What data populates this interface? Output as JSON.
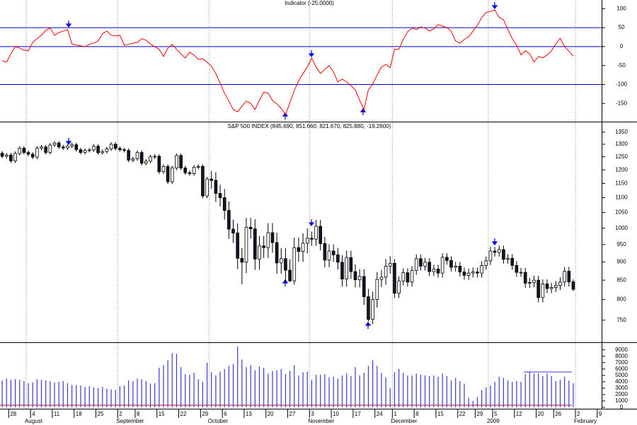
{
  "chart_data": [
    {
      "type": "line",
      "title": "Indicator (-25.0000)",
      "color": "#ff0000",
      "values": [
        -37,
        -41,
        -19,
        0,
        -4,
        -9,
        -11,
        11,
        21,
        30,
        43,
        49,
        30,
        37,
        41,
        45,
        7,
        4,
        2,
        0,
        6,
        9,
        15,
        34,
        41,
        30,
        28,
        30,
        4,
        6,
        9,
        11,
        21,
        17,
        7,
        0,
        -7,
        -26,
        -4,
        6,
        -7,
        -19,
        -30,
        -15,
        -22,
        -34,
        -32,
        -41,
        -52,
        -71,
        -97,
        -123,
        -144,
        -166,
        -172,
        -157,
        -144,
        -150,
        -166,
        -142,
        -120,
        -123,
        -142,
        -151,
        -163,
        -179,
        -148,
        -116,
        -90,
        -71,
        -54,
        -30,
        -54,
        -71,
        -60,
        -50,
        -67,
        -93,
        -86,
        -93,
        -103,
        -114,
        -142,
        -166,
        -114,
        -99,
        -75,
        -54,
        -47,
        -56,
        -7,
        -7,
        19,
        39,
        49,
        45,
        52,
        49,
        41,
        47,
        58,
        54,
        50,
        41,
        15,
        9,
        19,
        26,
        41,
        56,
        77,
        90,
        93,
        97,
        77,
        71,
        45,
        21,
        4,
        -22,
        -11,
        -19,
        -41,
        -26,
        -30,
        -22,
        -11,
        7,
        22,
        0,
        -12,
        -25,
        null,
        null,
        null,
        null,
        null,
        null
      ],
      "levels": [
        50,
        0,
        -100
      ],
      "level_color": "#0000cc",
      "ylim": [
        -198,
        123
      ],
      "yticks": [
        100,
        50,
        0,
        -50,
        -100,
        -150
      ]
    },
    {
      "type": "candlestick",
      "title": "S&P 500 INDEX (845.690, 851.660, 821.670, 825.880, -19.2600)",
      "up_color": "#ffffff",
      "down_color": "#101828",
      "log_scale": true,
      "open": [
        1264,
        1252,
        1257,
        1234,
        1263,
        1284,
        1267,
        1260,
        1249,
        1284,
        1289,
        1267,
        1297,
        1305,
        1289,
        1285,
        1292,
        1298,
        1278,
        1267,
        1275,
        1277,
        1292,
        1266,
        1271,
        1281,
        1300,
        1283,
        1278,
        1275,
        1237,
        1242,
        1267,
        1225,
        1233,
        1250,
        1252,
        1193,
        1213,
        1156,
        1207,
        1255,
        1207,
        1189,
        1186,
        1210,
        1213,
        1106,
        1166,
        1161,
        1115,
        1100,
        1057,
        997,
        985,
        910,
        899,
        1003,
        998,
        908,
        946,
        941,
        986,
        956,
        897,
        909,
        877,
        848,
        941,
        930,
        954,
        969,
        966,
        1006,
        953,
        905,
        931,
        920,
        899,
        853,
        912,
        873,
        851,
        860,
        807,
        752,
        800,
        852,
        858,
        888,
        896,
        816,
        848,
        870,
        845,
        876,
        909,
        888,
        899,
        873,
        880,
        869,
        913,
        904,
        885,
        888,
        872,
        863,
        869,
        872,
        869,
        890,
        903,
        931,
        927,
        935,
        907,
        910,
        890,
        871,
        871,
        842,
        844,
        850,
        805,
        840,
        828,
        831,
        836,
        845,
        874,
        845.69,
        null,
        null,
        null,
        null,
        null,
        null
      ],
      "high": [
        1272,
        1265,
        1265,
        1271,
        1292,
        1292,
        1275,
        1268,
        1292,
        1297,
        1297,
        1305,
        1313,
        1313,
        1297,
        1300,
        1306,
        1306,
        1286,
        1283,
        1285,
        1300,
        1300,
        1279,
        1289,
        1308,
        1308,
        1291,
        1286,
        1283,
        1250,
        1275,
        1275,
        1241,
        1258,
        1260,
        1260,
        1221,
        1221,
        1215,
        1263,
        1263,
        1215,
        1197,
        1218,
        1221,
        1221,
        1174,
        1196,
        1191,
        1145,
        1130,
        1087,
        1027,
        1015,
        940,
        1033,
        1033,
        1028,
        976,
        976,
        1016,
        1016,
        986,
        939,
        939,
        907,
        971,
        971,
        984,
        999,
        989,
        1026,
        1026,
        973,
        951,
        951,
        940,
        919,
        932,
        932,
        893,
        880,
        880,
        827,
        820,
        872,
        878,
        908,
        916,
        908,
        860,
        882,
        882,
        888,
        921,
        921,
        911,
        911,
        892,
        892,
        925,
        925,
        916,
        900,
        900,
        884,
        881,
        884,
        884,
        902,
        915,
        943,
        943,
        947,
        947,
        922,
        922,
        902,
        883,
        883,
        856,
        862,
        862,
        852,
        852,
        843,
        848,
        857,
        886,
        886,
        851.66,
        null,
        null,
        null,
        null,
        null,
        null
      ],
      "low": [
        1244,
        1244,
        1226,
        1226,
        1255,
        1259,
        1252,
        1241,
        1241,
        1276,
        1259,
        1259,
        1289,
        1281,
        1277,
        1277,
        1284,
        1270,
        1259,
        1259,
        1267,
        1269,
        1258,
        1258,
        1263,
        1273,
        1275,
        1270,
        1267,
        1229,
        1229,
        1234,
        1217,
        1217,
        1225,
        1242,
        1185,
        1185,
        1148,
        1148,
        1199,
        1199,
        1181,
        1178,
        1178,
        1202,
        1098,
        1098,
        1131,
        1085,
        1070,
        1027,
        967,
        955,
        880,
        839,
        869,
        968,
        878,
        878,
        911,
        911,
        926,
        867,
        867,
        847,
        845,
        838,
        900,
        900,
        924,
        946,
        946,
        933,
        885,
        885,
        900,
        879,
        833,
        833,
        853,
        831,
        831,
        787,
        747,
        741,
        780,
        832,
        838,
        868,
        804,
        804,
        836,
        833,
        833,
        864,
        876,
        876,
        861,
        861,
        857,
        857,
        892,
        873,
        873,
        860,
        851,
        851,
        857,
        857,
        857,
        878,
        891,
        915,
        915,
        895,
        895,
        878,
        859,
        859,
        830,
        830,
        832,
        793,
        793,
        816,
        816,
        819,
        824,
        833,
        833,
        821.67,
        null,
        null,
        null,
        null,
        null,
        null
      ],
      "close": [
        1252,
        1257,
        1234,
        1263,
        1284,
        1267,
        1260,
        1249,
        1284,
        1289,
        1267,
        1297,
        1305,
        1289,
        1285,
        1292,
        1298,
        1278,
        1267,
        1275,
        1277,
        1292,
        1266,
        1271,
        1281,
        1300,
        1283,
        1278,
        1275,
        1237,
        1242,
        1267,
        1225,
        1233,
        1250,
        1252,
        1193,
        1213,
        1156,
        1207,
        1255,
        1207,
        1189,
        1186,
        1210,
        1213,
        1106,
        1166,
        1161,
        1115,
        1100,
        1057,
        997,
        985,
        910,
        899,
        1003,
        998,
        908,
        946,
        941,
        986,
        956,
        897,
        909,
        877,
        848,
        941,
        930,
        954,
        969,
        966,
        1006,
        953,
        905,
        931,
        920,
        899,
        853,
        912,
        873,
        851,
        860,
        807,
        752,
        800,
        852,
        858,
        888,
        896,
        816,
        848,
        870,
        845,
        876,
        909,
        888,
        899,
        873,
        880,
        869,
        913,
        904,
        885,
        888,
        872,
        863,
        869,
        872,
        869,
        890,
        903,
        931,
        927,
        935,
        907,
        910,
        890,
        871,
        871,
        842,
        844,
        850,
        805,
        840,
        828,
        831,
        836,
        845,
        874,
        845.14,
        825.88,
        null,
        null,
        null,
        null,
        null,
        null
      ],
      "ylim": [
        700,
        1389
      ],
      "yticks": [
        1350,
        1300,
        1250,
        1200,
        1150,
        1100,
        1050,
        1000,
        950,
        900,
        850,
        800,
        750
      ]
    },
    {
      "type": "bar",
      "color": "#3a3ad0",
      "values": [
        4200,
        4500,
        4300,
        4400,
        4300,
        4100,
        3800,
        3900,
        4400,
        4300,
        4200,
        4100,
        3900,
        4000,
        4100,
        3800,
        3500,
        3500,
        3400,
        3200,
        3300,
        3100,
        3000,
        3200,
        2900,
        2800,
        2700,
        3300,
        3400,
        4200,
        4100,
        4500,
        4400,
        4100,
        3700,
        3800,
        6200,
        6600,
        7400,
        8500,
        8400,
        6300,
        5200,
        5100,
        5400,
        4400,
        4000,
        7000,
        5500,
        5000,
        5600,
        6000,
        6500,
        6800,
        9500,
        7500,
        6300,
        6600,
        5800,
        6400,
        6200,
        5300,
        5700,
        5800,
        6000,
        5200,
        5700,
        6600,
        5000,
        5500,
        5600,
        4300,
        5100,
        5100,
        5200,
        4700,
        4800,
        4500,
        5000,
        5300,
        4900,
        6300,
        5000,
        5400,
        6500,
        7400,
        6500,
        5400,
        4700,
        3000,
        5500,
        6000,
        5400,
        5000,
        5000,
        5300,
        5100,
        5000,
        4900,
        5000,
        4800,
        5300,
        4900,
        4200,
        4600,
        4100,
        3700,
        1500,
        1000,
        1600,
        2700,
        3100,
        3400,
        4000,
        4800,
        4600,
        4200,
        4000,
        4100,
        4000,
        5200,
        5600,
        5300,
        5300,
        4900,
        5300,
        4900,
        4100,
        4300,
        4800,
        4200,
        3800,
        null,
        null,
        null,
        null,
        null,
        null
      ],
      "ylim": [
        0,
        9970
      ],
      "yticks": [
        9000,
        8000,
        7000,
        6000,
        5000,
        4000,
        3000,
        2000,
        1000,
        0
      ],
      "categories": [
        null,
        null,
        "28",
        null,
        null,
        null,
        null,
        "4",
        null,
        null,
        null,
        null,
        "11",
        null,
        null,
        null,
        null,
        "18",
        null,
        null,
        null,
        null,
        "25",
        null,
        null,
        null,
        null,
        "2",
        null,
        null,
        null,
        "8",
        null,
        null,
        null,
        null,
        "15",
        null,
        null,
        null,
        null,
        "22",
        null,
        null,
        null,
        null,
        "29",
        null,
        null,
        null,
        null,
        "6",
        null,
        null,
        null,
        null,
        "13",
        null,
        null,
        null,
        null,
        "20",
        null,
        null,
        null,
        null,
        "27",
        null,
        null,
        null,
        null,
        "3",
        null,
        null,
        null,
        null,
        "10",
        null,
        null,
        null,
        null,
        "17",
        null,
        null,
        null,
        null,
        "24",
        null,
        null,
        null,
        "1",
        null,
        null,
        null,
        null,
        "8",
        null,
        null,
        null,
        null,
        "15",
        null,
        null,
        null,
        null,
        "22",
        null,
        null,
        null,
        "29",
        null,
        null,
        null,
        "5",
        null,
        null,
        null,
        null,
        "12",
        null,
        null,
        null,
        null,
        "20",
        null,
        null,
        null,
        "26",
        null,
        null,
        null,
        null,
        "2",
        null,
        null,
        null,
        null,
        "9"
      ],
      "month_labels": [
        null,
        null,
        null,
        null,
        null,
        null,
        "August",
        null,
        null,
        null,
        null,
        null,
        null,
        null,
        null,
        null,
        null,
        null,
        null,
        null,
        null,
        null,
        null,
        null,
        null,
        null,
        null,
        "September",
        null,
        null,
        null,
        null,
        null,
        null,
        null,
        null,
        null,
        null,
        null,
        null,
        null,
        null,
        null,
        null,
        null,
        null,
        null,
        null,
        "October",
        null,
        null,
        null,
        null,
        null,
        null,
        null,
        null,
        null,
        null,
        null,
        null,
        null,
        null,
        null,
        null,
        null,
        null,
        null,
        null,
        null,
        null,
        "November",
        null,
        null,
        null,
        null,
        null,
        null,
        null,
        null,
        null,
        null,
        null,
        null,
        null,
        null,
        null,
        null,
        null,
        null,
        "December",
        null,
        null,
        null,
        null,
        null,
        null,
        null,
        null,
        null,
        null,
        null,
        null,
        null,
        null,
        null,
        null,
        null,
        null,
        null,
        null,
        null,
        "2009",
        null,
        null,
        null,
        null,
        null,
        null,
        null,
        null,
        null,
        null,
        null,
        null,
        null,
        null,
        null,
        null,
        null,
        null,
        null,
        "February",
        null,
        null,
        null,
        null,
        null
      ]
    }
  ]
}
